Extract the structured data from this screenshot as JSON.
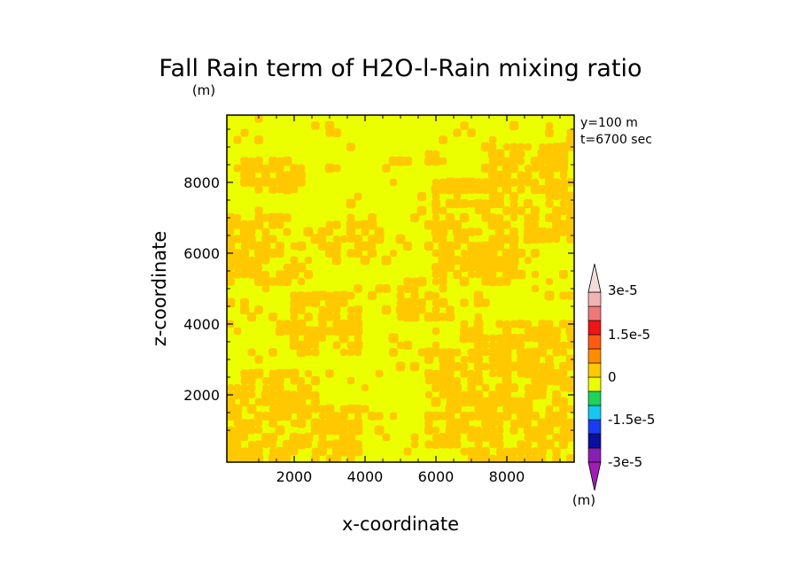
{
  "chart_data": {
    "type": "heatmap",
    "title": "Fall Rain term of H2O-l-Rain mixing ratio",
    "title_unit": "(m)",
    "xlabel": "x-coordinate",
    "ylabel": "z-coordinate",
    "xlim": [
      100,
      9900
    ],
    "ylim": [
      100,
      9900
    ],
    "x_ticks": [
      2000,
      4000,
      6000,
      8000
    ],
    "y_ticks": [
      2000,
      4000,
      6000,
      8000
    ],
    "annotations": [
      "y=100 m",
      "t=6700 sec"
    ],
    "colorbar": {
      "unit": "(m)",
      "levels": [
        -3e-05,
        -2.25e-05,
        -1.5e-05,
        -7.5e-06,
        0,
        7.5e-06,
        1.5e-05,
        2.25e-05,
        3e-05
      ],
      "labels": [
        "3e-5",
        "1.5e-5",
        "0",
        "-1.5e-5",
        "-3e-5"
      ],
      "colors_bottom_to_top": [
        "#8a1eb4",
        "#0a0fa0",
        "#1a3cf0",
        "#14c8f0",
        "#1ed25a",
        "#ebff00",
        "#ffc800",
        "#ff8c00",
        "#ff5a14",
        "#f01414",
        "#f07878",
        "#f0b4b4"
      ],
      "under_color": "#a01eb4",
      "over_color": "#f5dcdc"
    },
    "field": {
      "background_color": "#ebff00",
      "patch_color": "#ffc800",
      "background_range": "-7.5e-6 to 0",
      "patch_range": "0 to 7.5e-6",
      "patch_regions": [
        {
          "x": [
            100,
            2600
          ],
          "z": [
            100,
            2600
          ]
        },
        {
          "x": [
            2200,
            3800
          ],
          "z": [
            200,
            1600
          ]
        },
        {
          "x": [
            5800,
            7600
          ],
          "z": [
            600,
            3200
          ]
        },
        {
          "x": [
            6800,
            9900
          ],
          "z": [
            100,
            4000
          ]
        },
        {
          "x": [
            6000,
            8200
          ],
          "z": [
            5200,
            8000
          ]
        },
        {
          "x": [
            7400,
            9900
          ],
          "z": [
            6400,
            9000
          ]
        },
        {
          "x": [
            100,
            1800
          ],
          "z": [
            6200,
            7000
          ]
        },
        {
          "x": [
            100,
            2400
          ],
          "z": [
            5200,
            6300
          ]
        },
        {
          "x": [
            2000,
            3800
          ],
          "z": [
            3200,
            4800
          ]
        },
        {
          "x": [
            5000,
            6400
          ],
          "z": [
            4200,
            5200
          ]
        },
        {
          "x": [
            2800,
            4400
          ],
          "z": [
            6000,
            6800
          ]
        },
        {
          "x": [
            600,
            2200
          ],
          "z": [
            7800,
            8600
          ]
        }
      ]
    }
  }
}
